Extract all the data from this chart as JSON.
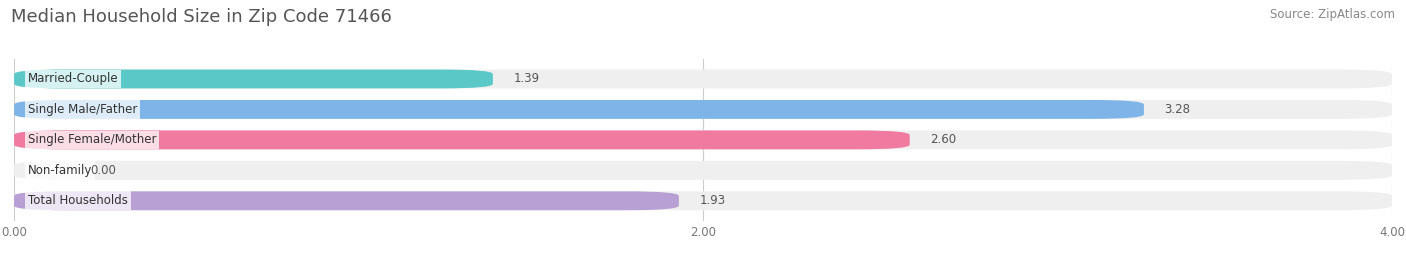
{
  "title": "Median Household Size in Zip Code 71466",
  "source_text": "Source: ZipAtlas.com",
  "categories": [
    "Married-Couple",
    "Single Male/Father",
    "Single Female/Mother",
    "Non-family",
    "Total Households"
  ],
  "values": [
    1.39,
    3.28,
    2.6,
    0.0,
    1.93
  ],
  "bar_colors": [
    "#5bc8c8",
    "#7eb4e8",
    "#f07aa0",
    "#f5c892",
    "#b89fd4"
  ],
  "bar_bg_color": "#efefef",
  "xlim": [
    0,
    4.0
  ],
  "xticks": [
    0.0,
    2.0,
    4.0
  ],
  "xtick_labels": [
    "0.00",
    "2.00",
    "4.00"
  ],
  "title_fontsize": 13,
  "label_fontsize": 8.5,
  "value_fontsize": 8.5,
  "source_fontsize": 8.5,
  "bar_height": 0.62,
  "background_color": "#ffffff",
  "grid_color": "#cccccc",
  "title_color": "#555555",
  "label_color": "#333333",
  "value_color": "#555555",
  "source_color": "#888888"
}
